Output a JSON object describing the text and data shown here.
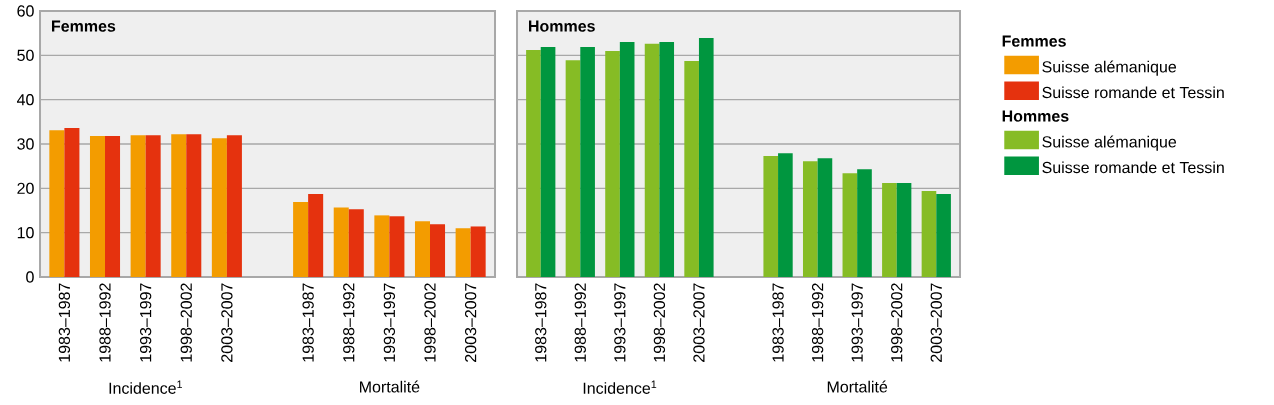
{
  "chart_data": [
    {
      "type": "bar",
      "title": "Femmes",
      "legend_title": "Femmes",
      "categories": [
        "1983–1987",
        "1988–1992",
        "1993–1997",
        "1998–2002",
        "2003–2007",
        null,
        "1983–1987",
        "1988–1992",
        "1993–1997",
        "1998–2002",
        "2003–2007"
      ],
      "series": [
        {
          "name": "Suisse alémanique",
          "color": "#f39c00",
          "values": [
            33.1,
            31.8,
            32.0,
            32.2,
            31.3,
            null,
            16.9,
            15.7,
            13.9,
            12.6,
            11.0
          ]
        },
        {
          "name": "Suisse romande et Tessin",
          "color": "#e5320e",
          "values": [
            33.6,
            31.8,
            32.0,
            32.2,
            32.0,
            null,
            18.7,
            15.3,
            13.7,
            11.9,
            11.4
          ]
        }
      ],
      "annotations": [
        "Incidence$^{1}$",
        "Mortalité"
      ],
      "ylim": [
        0,
        60
      ],
      "yticks": [
        0,
        10,
        20,
        30,
        40,
        50,
        60
      ],
      "grid": "y",
      "legend": "right"
    },
    {
      "type": "bar",
      "title": "Hommes",
      "legend_title": "Hommes",
      "categories": [
        "1983–1987",
        "1988–1992",
        "1993–1997",
        "1998–2002",
        "2003–2007",
        null,
        "1983–1987",
        "1988–1992",
        "1993–1997",
        "1998–2002",
        "2003–2007"
      ],
      "series": [
        {
          "name": "Suisse alémanique",
          "color": "#86bc25",
          "values": [
            51.2,
            48.9,
            51.0,
            52.6,
            48.7,
            null,
            27.3,
            26.1,
            23.4,
            21.2,
            19.4
          ]
        },
        {
          "name": "Suisse romande et Tessin",
          "color": "#00963f",
          "values": [
            51.9,
            51.9,
            53.0,
            53.0,
            53.9,
            null,
            27.9,
            26.8,
            24.3,
            21.2,
            18.7
          ]
        }
      ],
      "annotations": [
        "Incidence$^{1}$",
        "Mortalité"
      ],
      "ylim": [
        0,
        60
      ],
      "yticks": [
        0,
        10,
        20,
        30,
        40,
        50,
        60
      ],
      "grid": "y",
      "legend": "right",
      "tick_labels": "x"
    }
  ]
}
